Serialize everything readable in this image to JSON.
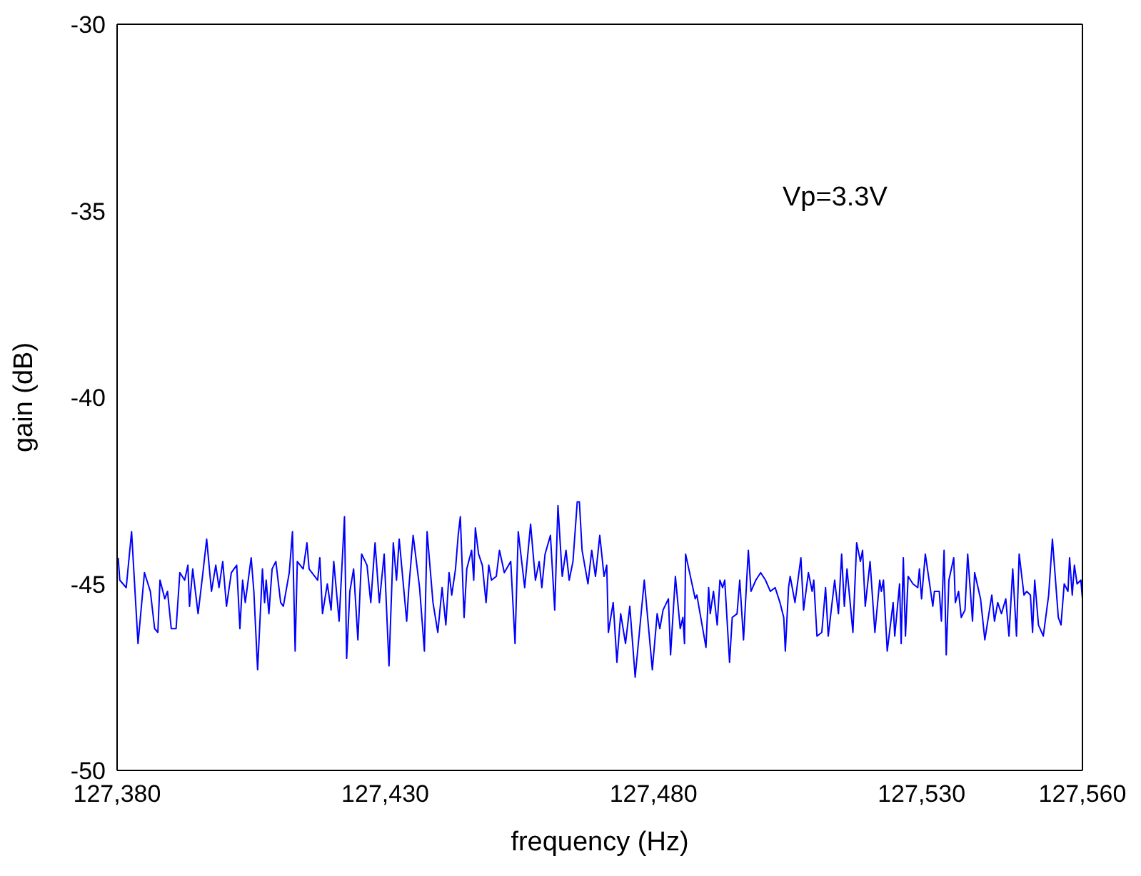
{
  "chart_data": {
    "type": "line",
    "xlabel": "frequency (Hz)",
    "ylabel": "gain (dB)",
    "annotations": [
      "Vp=3.3V"
    ],
    "xlim": [
      127380,
      127560
    ],
    "ylim": [
      -50,
      -30
    ],
    "xticks": [
      {
        "value": 127380,
        "label": "127,380"
      },
      {
        "value": 127430,
        "label": "127,430"
      },
      {
        "value": 127480,
        "label": "127,480"
      },
      {
        "value": 127530,
        "label": "127,530"
      },
      {
        "value": 127560,
        "label": "127,560"
      }
    ],
    "yticks": [
      -50,
      -45,
      -40,
      -35,
      -30
    ],
    "grid": false,
    "legend": false,
    "marker": "none",
    "line_style": "solid",
    "series": [
      {
        "color": "#0000ff",
        "x": [
          127380.2,
          127380.5,
          127381.7,
          127382.7,
          127383.9,
          127385.1,
          127386.2,
          127387.0,
          127387.6,
          127388.0,
          127388.9,
          127389.4,
          127390.1,
          127391.0,
          127391.7,
          127392.6,
          127393.2,
          127393.5,
          127394.1,
          127395.1,
          127396.0,
          127396.7,
          127397.6,
          127398.4,
          127399.0,
          127399.7,
          127400.4,
          127401.3,
          127402.3,
          127402.9,
          127403.4,
          127403.9,
          127405.0,
          127405.5,
          127406.2,
          127407.1,
          127407.5,
          127407.8,
          127408.3,
          127408.9,
          127409.6,
          127410.5,
          127411.0,
          127412.1,
          127412.7,
          127413.2,
          127413.6,
          127414.7,
          127415.4,
          127415.8,
          127417.4,
          127417.8,
          127418.3,
          127419.2,
          127419.9,
          127420.4,
          127421.4,
          127422.4,
          127422.8,
          127423.4,
          127424.1,
          127424.9,
          127425.6,
          127426.6,
          127427.3,
          127428.1,
          127428.9,
          127429.8,
          127430.7,
          127431.5,
          127432.1,
          127432.6,
          127434.0,
          127434.4,
          127435.2,
          127436.4,
          127437.3,
          127437.8,
          127438.9,
          127439.8,
          127440.6,
          127441.3,
          127441.9,
          127442.4,
          127443.1,
          127443.6,
          127444.0,
          127444.7,
          127445.2,
          127446.1,
          127446.5,
          127446.8,
          127447.4,
          127448.1,
          127448.8,
          127449.3,
          127449.8,
          127450.7,
          127451.3,
          127452.2,
          127453.4,
          127454.2,
          127454.8,
          127456.0,
          127457.1,
          127458.0,
          127458.7,
          127459.2,
          127459.8,
          127460.8,
          127461.6,
          127462.2,
          127463.0,
          127463.7,
          127464.3,
          127465.0,
          127465.8,
          127466.2,
          127466.7,
          127467.8,
          127468.5,
          127469.2,
          127470.0,
          127470.8,
          127471.3,
          127471.6,
          127472.5,
          127473.2,
          127473.9,
          127474.8,
          127475.6,
          127476.6,
          127478.3,
          127479.8,
          127480.7,
          127481.2,
          127481.8,
          127482.8,
          127483.2,
          127484.1,
          127485.0,
          127485.5,
          127485.8,
          127486.0,
          127487.8,
          127488.1,
          127489.8,
          127490.3,
          127490.6,
          127491.2,
          127491.9,
          127492.4,
          127492.9,
          127493.3,
          127494.2,
          127494.7,
          127495.6,
          127496.1,
          127496.8,
          127497.7,
          127498.2,
          127499.1,
          127500.0,
          127500.9,
          127501.8,
          127502.7,
          127503.6,
          127504.3,
          127504.6,
          127505.2,
          127505.5,
          127506.4,
          127507.5,
          127508.0,
          127508.9,
          127509.6,
          127509.9,
          127510.5,
          127511.4,
          127512.1,
          127512.6,
          127513.8,
          127514.5,
          127515.1,
          127515.6,
          127516.1,
          127517.2,
          127517.9,
          127518.6,
          127519.0,
          127519.5,
          127520.4,
          127521.3,
          127522.2,
          127522.5,
          127522.9,
          127523.6,
          127524.7,
          127525.0,
          127525.9,
          127526.2,
          127526.6,
          127527.0,
          127527.5,
          127528.4,
          127529.3,
          127529.6,
          127530.0,
          127530.7,
          127531.6,
          127532.1,
          127532.4,
          127533.3,
          127533.7,
          127534.2,
          127534.6,
          127535.1,
          127536.0,
          127536.3,
          127536.9,
          127537.4,
          127538.1,
          127538.6,
          127539.5,
          127539.9,
          127541.0,
          127541.8,
          127543.1,
          127543.6,
          127544.2,
          127544.9,
          127545.7,
          127546.3,
          127547.0,
          127547.7,
          127548.2,
          127549.1,
          127549.6,
          127550.3,
          127550.7,
          127551.1,
          127551.8,
          127552.7,
          127553.7,
          127554.4,
          127555.5,
          127556.0,
          127556.6,
          127557.3,
          127557.6,
          127558.1,
          127558.5,
          127559.0,
          127559.7,
          127560.0
        ],
        "values": [
          -44.3,
          -44.9,
          -45.1,
          -43.6,
          -46.6,
          -44.7,
          -45.2,
          -46.2,
          -46.3,
          -44.9,
          -45.4,
          -45.2,
          -46.2,
          -46.2,
          -44.7,
          -44.9,
          -44.5,
          -45.6,
          -44.6,
          -45.8,
          -44.7,
          -43.8,
          -45.2,
          -44.5,
          -45.1,
          -44.4,
          -45.6,
          -44.7,
          -44.5,
          -46.2,
          -44.9,
          -45.5,
          -44.3,
          -45.2,
          -47.3,
          -44.6,
          -45.5,
          -44.9,
          -45.8,
          -44.6,
          -44.4,
          -45.5,
          -45.6,
          -44.7,
          -43.6,
          -46.8,
          -44.4,
          -44.6,
          -43.9,
          -44.6,
          -44.9,
          -44.3,
          -45.8,
          -45.0,
          -45.7,
          -44.4,
          -46.0,
          -43.2,
          -47.0,
          -45.2,
          -44.6,
          -46.5,
          -44.2,
          -44.5,
          -45.5,
          -43.9,
          -45.5,
          -44.2,
          -47.2,
          -43.9,
          -44.9,
          -43.8,
          -46.0,
          -45.1,
          -43.7,
          -45.1,
          -46.8,
          -43.6,
          -45.5,
          -46.3,
          -45.1,
          -46.1,
          -44.7,
          -45.3,
          -44.6,
          -43.7,
          -43.2,
          -45.9,
          -44.6,
          -44.1,
          -44.9,
          -43.5,
          -44.2,
          -44.5,
          -45.5,
          -44.5,
          -44.9,
          -44.8,
          -44.1,
          -44.7,
          -44.4,
          -46.6,
          -43.6,
          -45.1,
          -43.4,
          -44.9,
          -44.4,
          -45.1,
          -44.2,
          -43.7,
          -45.7,
          -42.9,
          -44.8,
          -44.1,
          -44.9,
          -44.4,
          -42.8,
          -42.8,
          -44.1,
          -45.0,
          -44.1,
          -44.8,
          -43.7,
          -44.8,
          -44.5,
          -46.3,
          -45.5,
          -47.1,
          -45.8,
          -46.6,
          -45.6,
          -47.5,
          -44.9,
          -47.3,
          -45.8,
          -46.2,
          -45.7,
          -45.4,
          -46.9,
          -44.8,
          -46.2,
          -45.9,
          -46.6,
          -44.2,
          -45.4,
          -45.3,
          -46.7,
          -45.1,
          -45.8,
          -45.2,
          -46.1,
          -44.9,
          -45.1,
          -44.9,
          -47.1,
          -45.9,
          -45.8,
          -44.9,
          -46.5,
          -44.1,
          -45.2,
          -44.9,
          -44.7,
          -44.9,
          -45.2,
          -45.1,
          -45.5,
          -45.9,
          -46.8,
          -45.1,
          -44.8,
          -45.5,
          -44.3,
          -45.7,
          -44.7,
          -45.2,
          -44.9,
          -46.4,
          -46.3,
          -45.1,
          -46.4,
          -44.9,
          -45.8,
          -44.2,
          -45.6,
          -44.6,
          -46.3,
          -43.9,
          -44.4,
          -44.1,
          -45.6,
          -44.4,
          -46.3,
          -44.9,
          -45.2,
          -44.9,
          -46.8,
          -45.5,
          -46.4,
          -45.0,
          -46.6,
          -44.3,
          -46.4,
          -44.8,
          -45.0,
          -45.1,
          -44.6,
          -45.4,
          -44.2,
          -45.1,
          -45.6,
          -45.2,
          -45.2,
          -46.0,
          -44.1,
          -46.9,
          -44.9,
          -44.3,
          -45.5,
          -45.2,
          -45.9,
          -45.7,
          -44.2,
          -46.0,
          -44.7,
          -45.4,
          -46.5,
          -45.3,
          -46.0,
          -45.5,
          -45.8,
          -45.4,
          -46.4,
          -44.6,
          -46.4,
          -44.2,
          -45.3,
          -45.2,
          -45.3,
          -46.3,
          -44.9,
          -46.1,
          -46.4,
          -45.3,
          -43.8,
          -45.9,
          -46.1,
          -45.0,
          -45.2,
          -44.3,
          -45.3,
          -44.5,
          -45.0,
          -44.9,
          -45.4
        ]
      }
    ]
  }
}
